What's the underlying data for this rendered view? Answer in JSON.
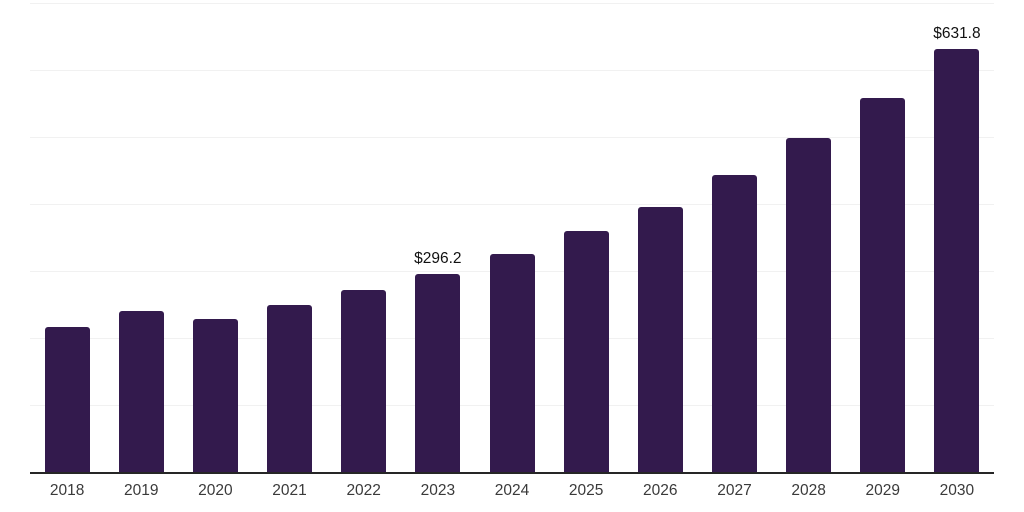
{
  "chart_data": {
    "type": "bar",
    "title": "",
    "xlabel": "",
    "ylabel": "",
    "categories": [
      "2018",
      "2019",
      "2020",
      "2021",
      "2022",
      "2023",
      "2024",
      "2025",
      "2026",
      "2027",
      "2028",
      "2029",
      "2030"
    ],
    "values": [
      217,
      240,
      229,
      250,
      271,
      296.2,
      326,
      359,
      396,
      443,
      498,
      558,
      631.8
    ],
    "data_labels": {
      "2023": "$296.2",
      "2030": "$631.8"
    },
    "ylim": [
      0,
      700
    ],
    "gridline_step": 100,
    "grid": true,
    "legend": false,
    "bar_color": "#331a4d",
    "axis_color": "#262626",
    "gridline_color": "#f1f1f1",
    "tick_label_color": "#3a3a3a",
    "value_label_color": "#111111"
  }
}
